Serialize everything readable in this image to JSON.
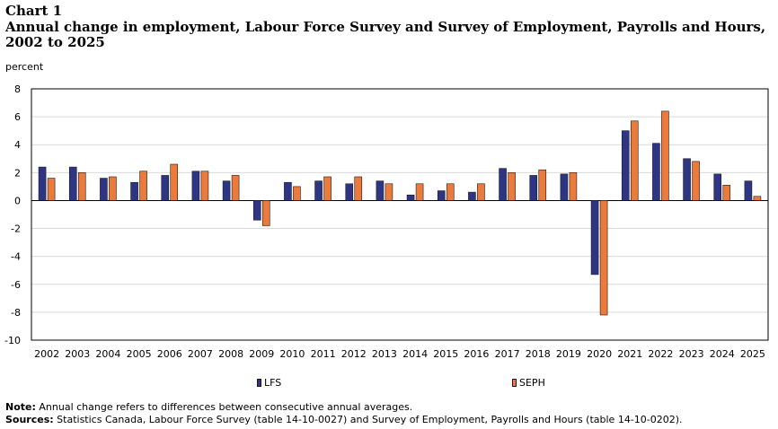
{
  "header": {
    "label": "Chart 1",
    "title": "Annual change in employment, Labour Force Survey and Survey of Employment, Payrolls and Hours, 2002 to 2025",
    "unit": "percent"
  },
  "colors": {
    "lfs": "#2e3585",
    "seph": "#ec7a3a",
    "grid": "#d9d9d9",
    "frame": "#000000"
  },
  "chart_data": {
    "type": "bar",
    "categories": [
      "2002",
      "2003",
      "2004",
      "2005",
      "2006",
      "2007",
      "2008",
      "2009",
      "2010",
      "2011",
      "2012",
      "2013",
      "2014",
      "2015",
      "2016",
      "2017",
      "2018",
      "2019",
      "2020",
      "2021",
      "2022",
      "2023",
      "2024",
      "2025"
    ],
    "series": [
      {
        "name": "LFS",
        "values": [
          2.4,
          2.4,
          1.6,
          1.3,
          1.8,
          2.1,
          1.4,
          -1.4,
          1.3,
          1.4,
          1.2,
          1.4,
          0.4,
          0.7,
          0.6,
          2.3,
          1.8,
          1.9,
          -5.3,
          5.0,
          4.1,
          3.0,
          1.9,
          1.4
        ]
      },
      {
        "name": "SEPH",
        "values": [
          1.6,
          2.0,
          1.7,
          2.1,
          2.6,
          2.1,
          1.8,
          -1.8,
          1.0,
          1.7,
          1.7,
          1.2,
          1.2,
          1.2,
          1.2,
          2.0,
          2.2,
          2.0,
          -8.2,
          5.7,
          6.4,
          2.8,
          1.1,
          0.3
        ]
      }
    ],
    "yticks": [
      8,
      6,
      4,
      2,
      0,
      -2,
      -4,
      -6,
      -8,
      -10
    ],
    "ylim": [
      -10,
      8
    ],
    "ylabel": "percent",
    "xlabel": "",
    "grid": true,
    "legend": "bottom"
  },
  "legend": {
    "lfs_label": "LFS",
    "seph_label": "SEPH"
  },
  "footer": {
    "note_label": "Note:",
    "note_text": "Annual change refers to differences between consecutive annual averages.",
    "sources_label": "Sources:",
    "sources_text": "Statistics Canada, Labour Force Survey (table 14-10-0027) and Survey of Employment, Payrolls and Hours (table 14-10-0202)."
  }
}
